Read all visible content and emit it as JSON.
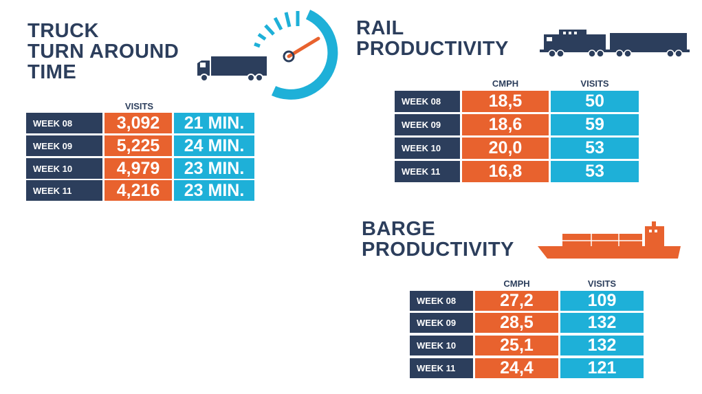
{
  "truck": {
    "title_lines": [
      "TRUCK",
      "TURN AROUND",
      "TIME"
    ],
    "visits_header": "VISITS",
    "rows": [
      {
        "week": "WEEK 08",
        "visits": "3,092",
        "time": "21 MIN."
      },
      {
        "week": "WEEK 09",
        "visits": "5,225",
        "time": "24 MIN."
      },
      {
        "week": "WEEK 10",
        "visits": "4,979",
        "time": "23 MIN."
      },
      {
        "week": "WEEK 11",
        "visits": "4,216",
        "time": "23 MIN."
      }
    ]
  },
  "rail": {
    "title_lines": [
      "RAIL",
      "PRODUCTIVITY"
    ],
    "cmph_header": "CMPH",
    "visits_header": "VISITS",
    "rows": [
      {
        "week": "WEEK 08",
        "cmph": "18,5",
        "visits": "50"
      },
      {
        "week": "WEEK 09",
        "cmph": "18,6",
        "visits": "59"
      },
      {
        "week": "WEEK 10",
        "cmph": "20,0",
        "visits": "53"
      },
      {
        "week": "WEEK 11",
        "cmph": "16,8",
        "visits": "53"
      }
    ]
  },
  "barge": {
    "title_lines": [
      "BARGE",
      "PRODUCTIVITY"
    ],
    "cmph_header": "CMPH",
    "visits_header": "VISITS",
    "rows": [
      {
        "week": "WEEK 08",
        "cmph": "27,2",
        "visits": "109"
      },
      {
        "week": "WEEK 09",
        "cmph": "28,5",
        "visits": "132"
      },
      {
        "week": "WEEK 10",
        "cmph": "25,1",
        "visits": "132"
      },
      {
        "week": "WEEK 11",
        "cmph": "24,4",
        "visits": "121"
      }
    ]
  },
  "colors": {
    "navy": "#2c3e5c",
    "orange": "#e8622e",
    "cyan": "#1eb0d8"
  },
  "icons": [
    "speedometer-icon",
    "truck-icon",
    "train-icon",
    "barge-icon"
  ]
}
